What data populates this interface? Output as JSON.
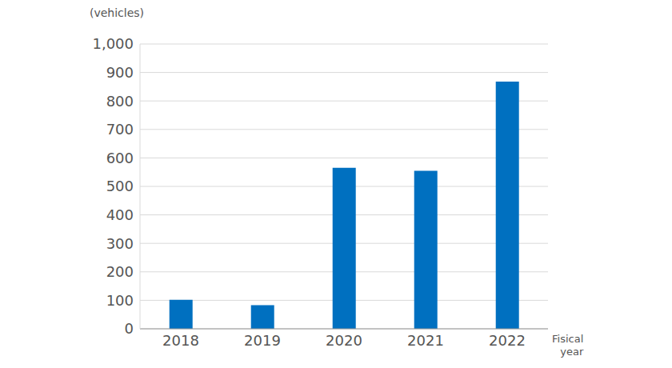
{
  "chart_data": {
    "type": "bar",
    "y_label": "(vehicles)",
    "x_label": "Fisical year",
    "categories": [
      "2018",
      "2019",
      "2020",
      "2021",
      "2022"
    ],
    "values": [
      102,
      83,
      565,
      555,
      868
    ],
    "color": "#0070c0",
    "ylim": [
      0,
      1000
    ],
    "yticks": [
      0,
      100,
      200,
      300,
      400,
      500,
      600,
      700,
      800,
      900,
      {
        "value": 1000,
        "label": "1,000"
      }
    ],
    "grid": true
  }
}
